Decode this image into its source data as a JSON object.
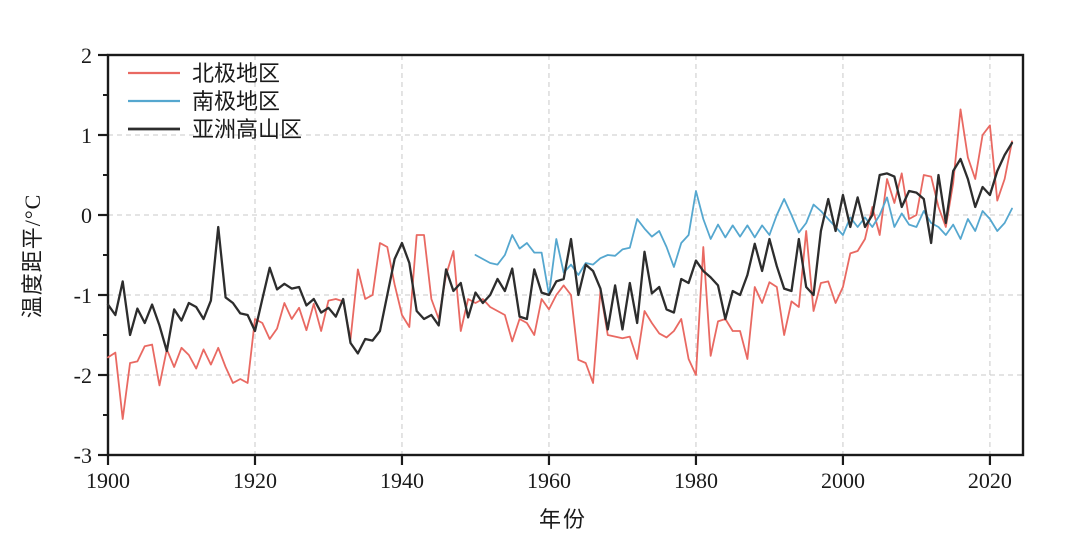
{
  "page": {
    "background": "#ffffff"
  },
  "chart_data": {
    "type": "line",
    "title": "",
    "xlabel": "年份",
    "ylabel": "温度距平/°C",
    "x_range": [
      1900,
      2024.5
    ],
    "y_range": [
      -3,
      2
    ],
    "x_ticks": [
      1900,
      1920,
      1940,
      1960,
      1980,
      2000,
      2020
    ],
    "y_ticks": [
      2,
      1,
      0,
      -1,
      -2,
      -3
    ],
    "y_minor_step": 0.5,
    "grid": {
      "x_at": [
        1920,
        1940,
        1960,
        1980,
        2000,
        2020
      ],
      "y_at": [
        1,
        0,
        -1,
        -2
      ],
      "color": "#c9c9c9",
      "dash": "5 4",
      "on": true
    },
    "axis_color": "#1a1a1a",
    "text_color": "#1a1a1a",
    "legend": {
      "position": "top-left",
      "items": [
        "北极地区",
        "南极地区",
        "亚洲高山区"
      ]
    },
    "series": [
      {
        "key": "arctic",
        "name": "北极地区",
        "color": "#e96962",
        "width": 1.8,
        "start_year": 1900,
        "values": [
          -1.78,
          -1.72,
          -2.55,
          -1.85,
          -1.83,
          -1.64,
          -1.62,
          -2.13,
          -1.68,
          -1.9,
          -1.66,
          -1.75,
          -1.92,
          -1.68,
          -1.87,
          -1.66,
          -1.9,
          -2.1,
          -2.05,
          -2.1,
          -1.3,
          -1.35,
          -1.55,
          -1.42,
          -1.1,
          -1.3,
          -1.16,
          -1.44,
          -1.11,
          -1.45,
          -1.07,
          -1.05,
          -1.08,
          -1.55,
          -0.68,
          -1.05,
          -1.0,
          -0.35,
          -0.4,
          -0.87,
          -1.25,
          -1.4,
          -0.25,
          -0.25,
          -1.05,
          -1.3,
          -0.75,
          -0.45,
          -1.45,
          -1.05,
          -1.1,
          -1.05,
          -1.15,
          -1.2,
          -1.25,
          -1.58,
          -1.3,
          -1.35,
          -1.5,
          -1.05,
          -1.18,
          -1.0,
          -0.88,
          -1.0,
          -1.81,
          -1.85,
          -2.1,
          -0.95,
          -1.5,
          -1.52,
          -1.54,
          -1.52,
          -1.8,
          -1.2,
          -1.35,
          -1.48,
          -1.53,
          -1.45,
          -1.3,
          -1.8,
          -2.0,
          -0.4,
          -1.76,
          -1.33,
          -1.3,
          -1.45,
          -1.45,
          -1.8,
          -0.9,
          -1.1,
          -0.84,
          -0.9,
          -1.5,
          -1.08,
          -1.15,
          -0.2,
          -1.2,
          -0.85,
          -0.83,
          -1.1,
          -0.9,
          -0.48,
          -0.45,
          -0.3,
          0.1,
          -0.25,
          0.45,
          0.15,
          0.52,
          -0.05,
          0.0,
          0.5,
          0.48,
          0.1,
          -0.15,
          0.4,
          1.32,
          0.72,
          0.45,
          1.0,
          1.12,
          0.18,
          0.45,
          0.92
        ]
      },
      {
        "key": "antarctic",
        "name": "南极地区",
        "color": "#55a7cf",
        "width": 1.8,
        "start_year": 1950,
        "values": [
          -0.5,
          -0.55,
          -0.6,
          -0.62,
          -0.5,
          -0.25,
          -0.42,
          -0.35,
          -0.47,
          -0.47,
          -1.0,
          -0.3,
          -0.72,
          -0.62,
          -0.75,
          -0.6,
          -0.62,
          -0.54,
          -0.5,
          -0.51,
          -0.43,
          -0.41,
          -0.05,
          -0.17,
          -0.27,
          -0.2,
          -0.4,
          -0.65,
          -0.35,
          -0.25,
          0.3,
          -0.05,
          -0.3,
          -0.12,
          -0.28,
          -0.13,
          -0.27,
          -0.13,
          -0.28,
          -0.13,
          -0.25,
          0.0,
          0.2,
          0.0,
          -0.22,
          -0.1,
          0.13,
          0.05,
          -0.05,
          -0.15,
          -0.25,
          -0.03,
          -0.15,
          -0.03,
          -0.15,
          0.0,
          0.22,
          -0.15,
          0.02,
          -0.12,
          -0.15,
          0.05,
          -0.1,
          -0.15,
          -0.25,
          -0.12,
          -0.3,
          -0.05,
          -0.2,
          0.05,
          -0.05,
          -0.2,
          -0.1,
          0.08
        ]
      },
      {
        "key": "asian-highland",
        "name": "亚洲高山区",
        "color": "#2d2d2d",
        "width": 2.3,
        "start_year": 1900,
        "values": [
          -1.12,
          -1.25,
          -0.83,
          -1.5,
          -1.17,
          -1.35,
          -1.12,
          -1.38,
          -1.7,
          -1.18,
          -1.32,
          -1.1,
          -1.15,
          -1.3,
          -1.07,
          -0.15,
          -1.03,
          -1.1,
          -1.23,
          -1.25,
          -1.45,
          -1.05,
          -0.66,
          -0.93,
          -0.86,
          -0.92,
          -0.9,
          -1.13,
          -1.05,
          -1.22,
          -1.16,
          -1.27,
          -1.05,
          -1.6,
          -1.73,
          -1.55,
          -1.57,
          -1.45,
          -1.0,
          -0.55,
          -0.35,
          -0.6,
          -1.2,
          -1.3,
          -1.25,
          -1.38,
          -0.68,
          -0.95,
          -0.85,
          -1.28,
          -0.97,
          -1.1,
          -1.0,
          -0.8,
          -0.95,
          -0.67,
          -1.27,
          -1.3,
          -0.68,
          -0.97,
          -1.0,
          -0.83,
          -0.8,
          -0.3,
          -1.0,
          -0.62,
          -0.7,
          -0.92,
          -1.43,
          -0.88,
          -1.43,
          -0.85,
          -1.35,
          -0.46,
          -0.98,
          -0.9,
          -1.18,
          -1.22,
          -0.8,
          -0.85,
          -0.57,
          -0.7,
          -0.78,
          -0.88,
          -1.3,
          -0.95,
          -1.0,
          -0.75,
          -0.36,
          -0.7,
          -0.3,
          -0.64,
          -0.92,
          -0.95,
          -0.3,
          -0.9,
          -1.0,
          -0.2,
          0.2,
          -0.2,
          0.25,
          -0.15,
          0.22,
          -0.15,
          0.0,
          0.5,
          0.52,
          0.48,
          0.1,
          0.3,
          0.28,
          0.2,
          -0.35,
          0.5,
          -0.1,
          0.55,
          0.7,
          0.45,
          0.1,
          0.35,
          0.25,
          0.55,
          0.75,
          0.9
        ]
      }
    ]
  }
}
